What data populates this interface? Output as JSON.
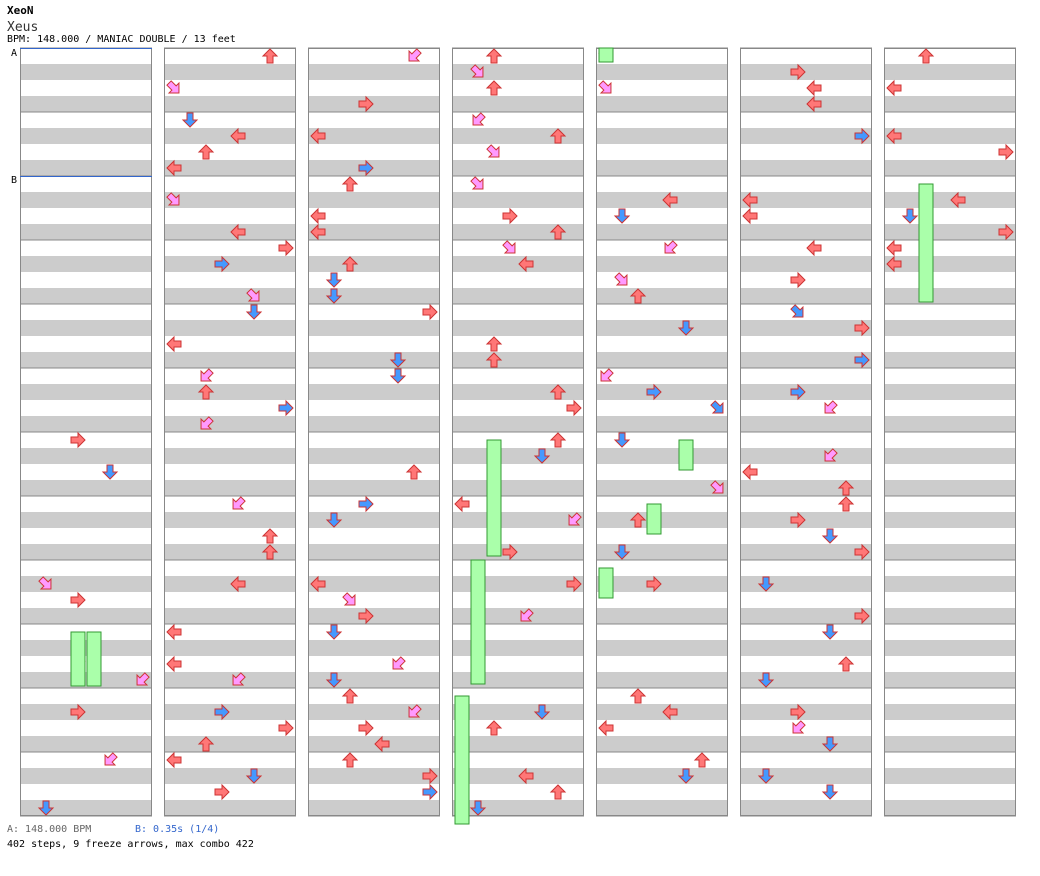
{
  "song": {
    "artist": "XeoN",
    "title": "Xeus",
    "info": "BPM: 148.000 / MANIAC DOUBLE / 13 feet"
  },
  "markers": {
    "a": "A",
    "b": "B"
  },
  "footer": {
    "bpm_label": "A: 148.000 BPM",
    "gap_label": "B: 0.35s (1/4)",
    "stats": "402 steps, 9 freeze arrows, max combo 422"
  },
  "colors": {
    "stripe": "#cccccc",
    "border": "#888888",
    "marker_line": "#3366cc",
    "left_right_arrow": "#ff7777",
    "diagonal_arrow": "#ff99ff",
    "down_up_arrow": "#4499ff",
    "freeze": "#aaffaa"
  },
  "chart_data": {
    "type": "step-chart",
    "columns": 7,
    "measures_per_column": 12,
    "freeze_arrows": 9,
    "steps": 402,
    "max_combo": 422
  }
}
